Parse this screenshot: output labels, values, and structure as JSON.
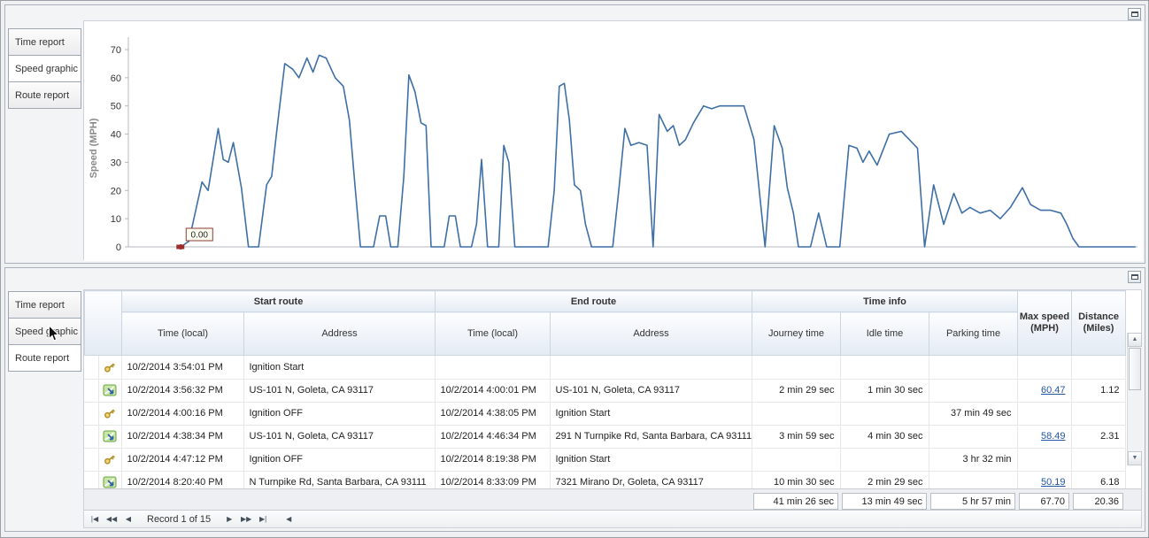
{
  "chart_data": {
    "type": "line",
    "title": "",
    "xlabel": "",
    "ylabel": "Speed (MPH)",
    "ylim": [
      0,
      70
    ],
    "yticks": [
      0,
      10,
      20,
      30,
      40,
      50,
      60,
      70
    ],
    "grid": false,
    "line_color": "#3e6fa5",
    "marker": {
      "x": 5.2,
      "y": 0,
      "label": "0.00",
      "color": "#9e2c2c"
    },
    "series": [
      {
        "name": "Speed",
        "points": [
          [
            5.2,
            0
          ],
          [
            6.0,
            2
          ],
          [
            7.3,
            23
          ],
          [
            7.9,
            20
          ],
          [
            8.9,
            42
          ],
          [
            9.4,
            31
          ],
          [
            9.9,
            30
          ],
          [
            10.4,
            37
          ],
          [
            11.2,
            21
          ],
          [
            11.9,
            0
          ],
          [
            12.9,
            0
          ],
          [
            13.7,
            22
          ],
          [
            14.2,
            25
          ],
          [
            14.7,
            41
          ],
          [
            15.5,
            65
          ],
          [
            16.3,
            63
          ],
          [
            16.9,
            60
          ],
          [
            17.7,
            67
          ],
          [
            18.3,
            62
          ],
          [
            18.9,
            68
          ],
          [
            19.6,
            67
          ],
          [
            20.5,
            60
          ],
          [
            21.3,
            57
          ],
          [
            21.9,
            45
          ],
          [
            22.5,
            20
          ],
          [
            23.0,
            0
          ],
          [
            24.3,
            0
          ],
          [
            24.9,
            11
          ],
          [
            25.5,
            11
          ],
          [
            26.0,
            0
          ],
          [
            26.7,
            0
          ],
          [
            27.3,
            25
          ],
          [
            27.8,
            61
          ],
          [
            28.4,
            55
          ],
          [
            29.0,
            44
          ],
          [
            29.5,
            43
          ],
          [
            30.0,
            0
          ],
          [
            31.3,
            0
          ],
          [
            31.8,
            11
          ],
          [
            32.4,
            11
          ],
          [
            32.9,
            0
          ],
          [
            34.0,
            0
          ],
          [
            34.5,
            8
          ],
          [
            35.0,
            31
          ],
          [
            35.6,
            0
          ],
          [
            36.7,
            0
          ],
          [
            37.2,
            36
          ],
          [
            37.7,
            30
          ],
          [
            38.3,
            0
          ],
          [
            41.6,
            0
          ],
          [
            42.2,
            20
          ],
          [
            42.7,
            57
          ],
          [
            43.2,
            58
          ],
          [
            43.7,
            45
          ],
          [
            44.2,
            22
          ],
          [
            44.8,
            20
          ],
          [
            45.3,
            8
          ],
          [
            45.9,
            0
          ],
          [
            48.0,
            0
          ],
          [
            48.6,
            20
          ],
          [
            49.2,
            42
          ],
          [
            49.8,
            36
          ],
          [
            50.6,
            37
          ],
          [
            51.4,
            36
          ],
          [
            52.0,
            0
          ],
          [
            52.6,
            47
          ],
          [
            53.4,
            41
          ],
          [
            54.0,
            43
          ],
          [
            54.6,
            36
          ],
          [
            55.2,
            38
          ],
          [
            56.0,
            44
          ],
          [
            57.0,
            50
          ],
          [
            57.8,
            49
          ],
          [
            58.6,
            50
          ],
          [
            60.0,
            50
          ],
          [
            61.0,
            50
          ],
          [
            62.0,
            38
          ],
          [
            63.1,
            0
          ],
          [
            64.0,
            43
          ],
          [
            64.8,
            35
          ],
          [
            65.3,
            21
          ],
          [
            65.9,
            12
          ],
          [
            66.4,
            0
          ],
          [
            67.6,
            0
          ],
          [
            68.4,
            12
          ],
          [
            69.2,
            0
          ],
          [
            70.5,
            0
          ],
          [
            71.4,
            36
          ],
          [
            72.2,
            35
          ],
          [
            72.8,
            30
          ],
          [
            73.4,
            34
          ],
          [
            74.2,
            29
          ],
          [
            75.4,
            40
          ],
          [
            76.6,
            41
          ],
          [
            77.4,
            38
          ],
          [
            78.2,
            35
          ],
          [
            78.9,
            0
          ],
          [
            79.8,
            22
          ],
          [
            80.8,
            8
          ],
          [
            81.8,
            19
          ],
          [
            82.6,
            12
          ],
          [
            83.4,
            14
          ],
          [
            84.4,
            12
          ],
          [
            85.4,
            13
          ],
          [
            86.4,
            10
          ],
          [
            87.4,
            14
          ],
          [
            88.6,
            21
          ],
          [
            89.4,
            15
          ],
          [
            90.4,
            13
          ],
          [
            91.4,
            13
          ],
          [
            92.4,
            12
          ],
          [
            93.0,
            8
          ],
          [
            93.6,
            3
          ],
          [
            94.2,
            0
          ],
          [
            99.8,
            0
          ]
        ]
      }
    ]
  },
  "top_panel": {
    "tabs": [
      {
        "label": "Time report",
        "selected": false
      },
      {
        "label": "Speed graphic",
        "selected": true
      },
      {
        "label": "Route report",
        "selected": false
      }
    ]
  },
  "bottom_panel": {
    "tabs": [
      {
        "label": "Time report",
        "selected": false
      },
      {
        "label": "Speed graphic",
        "selected": false
      },
      {
        "label": "Route report",
        "selected": true
      }
    ],
    "table": {
      "group_headers": [
        {
          "label": "Start route"
        },
        {
          "label": "End route"
        },
        {
          "label": "Time info"
        }
      ],
      "columns": [
        "Time (local)",
        "Address",
        "Time (local)",
        "Address",
        "Journey time",
        "Idle time",
        "Parking time"
      ],
      "tall_columns": [
        "Max speed (MPH)",
        "Distance (Miles)"
      ],
      "rows": [
        {
          "icon": "key",
          "start_time": "10/2/2014 3:54:01 PM",
          "start_address": "Ignition Start",
          "end_time": "",
          "end_address": "",
          "journey_time": "",
          "idle_time": "",
          "parking_time": "",
          "max_speed": "",
          "distance": ""
        },
        {
          "icon": "route",
          "start_time": "10/2/2014 3:56:32 PM",
          "start_address": "US-101 N, Goleta, CA 93117",
          "end_time": "10/2/2014 4:00:01 PM",
          "end_address": "US-101 N, Goleta, CA 93117",
          "journey_time": "2 min 29 sec",
          "idle_time": "1 min 30 sec",
          "parking_time": "",
          "max_speed": "60.47",
          "distance": "1.12"
        },
        {
          "icon": "key",
          "start_time": "10/2/2014 4:00:16 PM",
          "start_address": "Ignition OFF",
          "end_time": "10/2/2014 4:38:05 PM",
          "end_address": "Ignition Start",
          "journey_time": "",
          "idle_time": "",
          "parking_time": "37 min 49 sec",
          "max_speed": "",
          "distance": ""
        },
        {
          "icon": "route",
          "start_time": "10/2/2014 4:38:34 PM",
          "start_address": "US-101 N, Goleta, CA 93117",
          "end_time": "10/2/2014 4:46:34 PM",
          "end_address": "291 N Turnpike Rd, Santa Barbara, CA 93111",
          "journey_time": "3 min 59 sec",
          "idle_time": "4 min 30 sec",
          "parking_time": "",
          "max_speed": "58.49",
          "distance": "2.31"
        },
        {
          "icon": "key",
          "start_time": "10/2/2014 4:47:12 PM",
          "start_address": "Ignition OFF",
          "end_time": "10/2/2014 8:19:38 PM",
          "end_address": "Ignition Start",
          "journey_time": "",
          "idle_time": "",
          "parking_time": "3 hr 32 min",
          "max_speed": "",
          "distance": ""
        },
        {
          "icon": "route",
          "start_time": "10/2/2014 8:20:40 PM",
          "start_address": "N Turnpike Rd, Santa Barbara, CA 93111",
          "end_time": "10/2/2014 8:33:09 PM",
          "end_address": "7321 Mirano Dr, Goleta, CA 93117",
          "journey_time": "10 min 30 sec",
          "idle_time": "2 min 29 sec",
          "parking_time": "",
          "max_speed": "50.19",
          "distance": "6.18"
        }
      ],
      "summary": {
        "journey_time": "41 min 26 sec",
        "idle_time": "13 min 49 sec",
        "parking_time": "5 hr 57 min",
        "max_speed": "67.70",
        "distance": "20.36"
      }
    },
    "pager": {
      "record_text": "Record 1 of 15",
      "buttons_left": [
        {
          "name": "first",
          "glyph": "|◀"
        },
        {
          "name": "prev-page",
          "glyph": "◀◀"
        },
        {
          "name": "prev",
          "glyph": "◀"
        }
      ],
      "buttons_right": [
        {
          "name": "next",
          "glyph": "▶"
        },
        {
          "name": "next-page",
          "glyph": "▶▶"
        },
        {
          "name": "last",
          "glyph": "▶|"
        }
      ],
      "scroll_left_glyph": "◀"
    },
    "scrollbar": {
      "up_glyph": "▲",
      "down_glyph": "▼"
    }
  }
}
